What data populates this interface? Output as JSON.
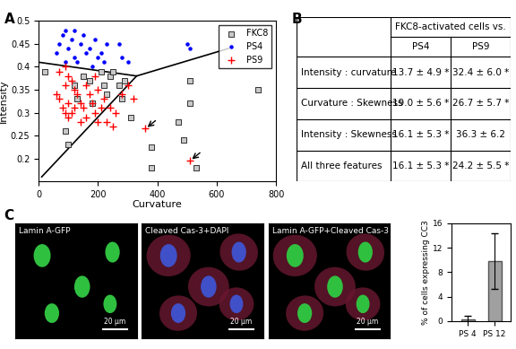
{
  "chart_data": [
    {
      "type": "scatter",
      "panel": "A",
      "x_label": "Curvature",
      "y_label": "Intensity",
      "xlim": [
        0,
        800
      ],
      "xticks": [
        0,
        200,
        400,
        600,
        800
      ],
      "ylim": [
        0.15,
        0.5
      ],
      "yticks": [
        0.2,
        0.25,
        0.3,
        0.35,
        0.4,
        0.45,
        0.5
      ],
      "legend": "upper right",
      "grid": false,
      "series": [
        {
          "name": "FKC8",
          "color": "#c8c8c8",
          "marker": "square",
          "x": [
            20,
            90,
            100,
            120,
            130,
            150,
            170,
            180,
            210,
            220,
            230,
            240,
            250,
            270,
            280,
            290,
            310,
            380,
            380,
            470,
            490,
            510,
            510,
            530,
            740
          ],
          "y": [
            0.39,
            0.26,
            0.23,
            0.36,
            0.33,
            0.38,
            0.37,
            0.32,
            0.39,
            0.36,
            0.34,
            0.38,
            0.39,
            0.36,
            0.33,
            0.37,
            0.29,
            0.225,
            0.18,
            0.28,
            0.24,
            0.37,
            0.32,
            0.18,
            0.35
          ]
        },
        {
          "name": "PS4",
          "color": "#0000ff",
          "marker": "dot",
          "x": [
            60,
            70,
            80,
            90,
            100,
            110,
            120,
            130,
            140,
            150,
            160,
            170,
            180,
            190,
            200,
            210,
            220,
            230,
            270,
            280,
            300,
            500,
            510,
            90,
            120
          ],
          "y": [
            0.43,
            0.45,
            0.47,
            0.48,
            0.44,
            0.46,
            0.42,
            0.41,
            0.45,
            0.47,
            0.43,
            0.44,
            0.4,
            0.46,
            0.42,
            0.43,
            0.41,
            0.45,
            0.45,
            0.42,
            0.41,
            0.45,
            0.44,
            0.41,
            0.48
          ]
        },
        {
          "name": "PS9",
          "color": "#ff0000",
          "marker": "plus",
          "x": [
            60,
            70,
            80,
            90,
            90,
            100,
            100,
            110,
            110,
            120,
            120,
            130,
            140,
            140,
            150,
            160,
            160,
            170,
            180,
            190,
            190,
            200,
            210,
            220,
            230,
            240,
            250,
            260,
            280,
            300,
            320,
            70,
            90,
            100,
            200,
            360,
            510
          ],
          "y": [
            0.34,
            0.33,
            0.31,
            0.3,
            0.36,
            0.32,
            0.29,
            0.3,
            0.37,
            0.31,
            0.35,
            0.34,
            0.28,
            0.32,
            0.31,
            0.36,
            0.29,
            0.34,
            0.32,
            0.38,
            0.3,
            0.35,
            0.31,
            0.33,
            0.28,
            0.31,
            0.27,
            0.3,
            0.34,
            0.36,
            0.33,
            0.39,
            0.4,
            0.38,
            0.28,
            0.265,
            0.195
          ]
        },
        {
          "type": "line",
          "color": "#000000",
          "x": [
            0,
            330,
            640
          ],
          "y": [
            0.41,
            0.38,
            0.44
          ]
        },
        {
          "type": "line",
          "color": "#000000",
          "x": [
            330,
            10
          ],
          "y": [
            0.38,
            0.16
          ]
        }
      ],
      "arrows": [
        [
          360,
          0.265
        ],
        [
          510,
          0.195
        ]
      ]
    },
    {
      "type": "bar",
      "y_label": "% of cells expressing CC3",
      "categories": [
        "PS 4",
        "PS 12"
      ],
      "values": [
        0.3,
        9.8
      ],
      "errors": [
        0.6,
        4.6
      ],
      "color": "#a0a0a0",
      "ylim": [
        0,
        16
      ],
      "yticks": [
        0,
        4,
        8,
        12,
        16
      ],
      "grid": false
    }
  ],
  "table": {
    "panel": "B",
    "header": {
      "title": "FKC8-activated cells vs.",
      "columns": [
        "PS4",
        "PS9"
      ]
    },
    "rows": [
      [
        "Intensity : curvature",
        "13.7 ± 4.9 *",
        "32.4 ± 6.0 *"
      ],
      [
        "Curvature : Skewness",
        "19.0 ± 5.6 *",
        "26.7 ± 5.7 *"
      ],
      [
        "Intensity : Skewness",
        "16.1 ± 5.3 *",
        "36.3 ± 6.2"
      ],
      [
        "All three features",
        "16.1 ± 5.3 *",
        "24.2 ± 5.5 *"
      ]
    ]
  },
  "images": {
    "panel": "C",
    "panels": [
      {
        "title": "Lamin A-GFP",
        "scale_bar": "20 µm"
      },
      {
        "title": "Cleaved Cas-3+DAPI",
        "scale_bar": "20 µm"
      },
      {
        "title": "Lamin A-GFP+Cleaved Cas-3",
        "scale_bar": "20 µm"
      }
    ]
  }
}
